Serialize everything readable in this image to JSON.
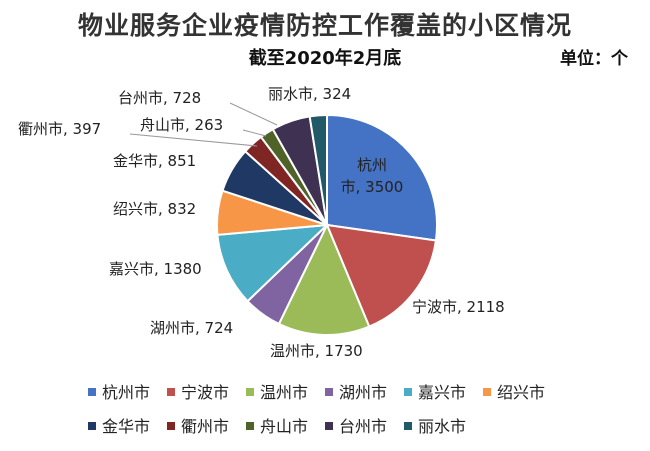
{
  "chart_data": {
    "type": "pie",
    "title": "物业服务企业疫情防控工作覆盖的小区情况",
    "subtitle": "截至2020年2月底",
    "unit_label": "单位：个",
    "categories": [
      "杭州市",
      "宁波市",
      "温州市",
      "湖州市",
      "嘉兴市",
      "绍兴市",
      "金华市",
      "衢州市",
      "舟山市",
      "台州市",
      "丽水市"
    ],
    "values": [
      3500,
      2118,
      1730,
      724,
      1380,
      832,
      851,
      397,
      263,
      728,
      324
    ],
    "colors": [
      "#4472C4",
      "#C0504D",
      "#9BBB59",
      "#8064A2",
      "#4BACC6",
      "#F79646",
      "#1F3864",
      "#7F2524",
      "#4F6228",
      "#3F3151",
      "#215968"
    ],
    "legend_position": "bottom"
  }
}
